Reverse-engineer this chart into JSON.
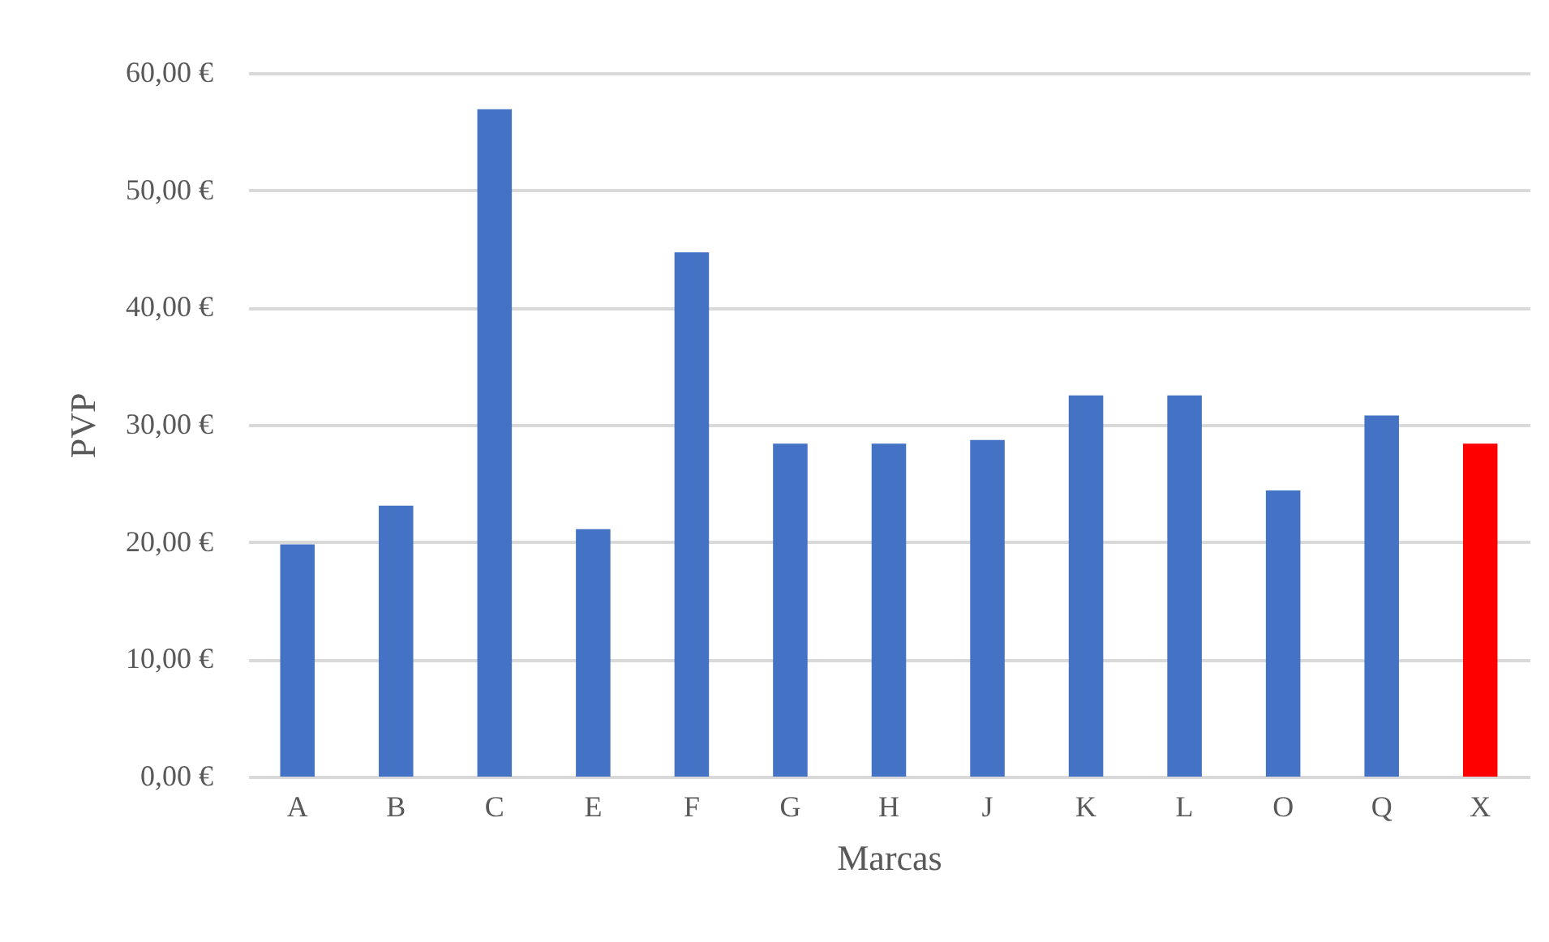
{
  "chart_data": {
    "type": "bar",
    "xlabel": "Marcas",
    "ylabel": "PVP",
    "categories": [
      "A",
      "B",
      "C",
      "E",
      "F",
      "G",
      "H",
      "J",
      "K",
      "L",
      "O",
      "Q",
      "X"
    ],
    "values": [
      19.8,
      23.1,
      56.9,
      21.1,
      44.7,
      28.4,
      28.4,
      28.7,
      32.5,
      32.5,
      24.4,
      30.8,
      28.4
    ],
    "colors": [
      "#4472c4",
      "#4472c4",
      "#4472c4",
      "#4472c4",
      "#4472c4",
      "#4472c4",
      "#4472c4",
      "#4472c4",
      "#4472c4",
      "#4472c4",
      "#4472c4",
      "#4472c4",
      "#ff0000"
    ],
    "ylim": [
      0,
      60
    ],
    "yticks": [
      {
        "value": 0,
        "label": "0,00 €"
      },
      {
        "value": 10,
        "label": "10,00 €"
      },
      {
        "value": 20,
        "label": "20,00 €"
      },
      {
        "value": 30,
        "label": "30,00 €"
      },
      {
        "value": 40,
        "label": "40,00 €"
      },
      {
        "value": 50,
        "label": "50,00 €"
      },
      {
        "value": 60,
        "label": "60,00 €"
      }
    ],
    "grid": "y"
  }
}
